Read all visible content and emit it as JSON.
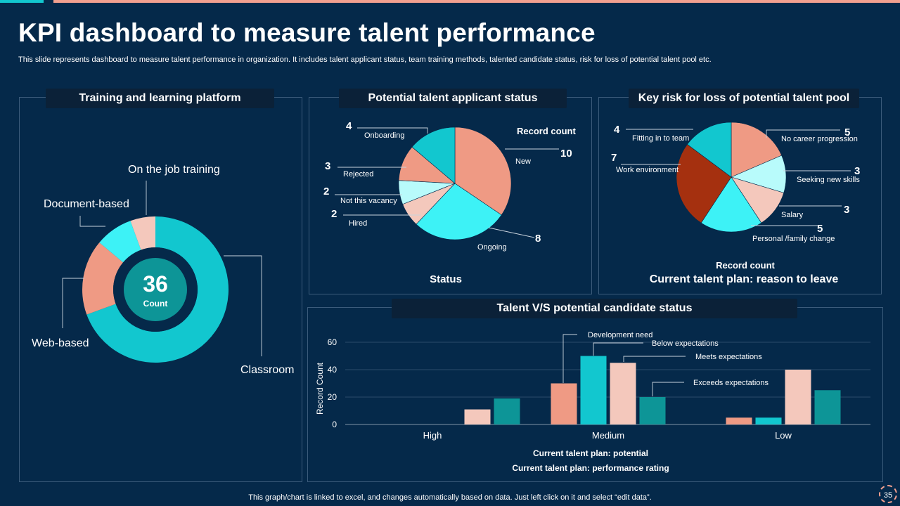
{
  "header": {
    "title": "KPI dashboard to measure talent performance",
    "subtitle": "This slide represents dashboard to measure talent performance in organization. It includes talent applicant status, team training methods, talented candidate status, risk for loss of potential talent pool etc."
  },
  "panels": {
    "training": "Training and learning platform",
    "applicant": "Potential talent applicant status",
    "risk": "Key risk for loss of potential talent pool",
    "bar": "Talent V/S potential candidate status"
  },
  "footer": "This graph/chart is linked to excel,  and changes automatically based on data. Just left click on it and select “edit data”.",
  "page_number": "35",
  "colors": {
    "teal": "#12c7cf",
    "salmon": "#ef9a84",
    "light_cyan": "#3df2f6",
    "pale_cyan": "#b8fbfb",
    "blush": "#f4c8bc",
    "rust": "#a5300f",
    "dark_teal": "#0d9597",
    "background": "#05294a"
  },
  "chart_data": [
    {
      "type": "pie",
      "variant": "donut",
      "title": "Training and learning platform",
      "center_value": "36",
      "center_label": "Count",
      "slices": [
        {
          "label": "Classroom",
          "value": 25
        },
        {
          "label": "Web-based",
          "value": 6
        },
        {
          "label": "Document-based",
          "value": 3
        },
        {
          "label": "On the job training",
          "value": 2
        }
      ]
    },
    {
      "type": "pie",
      "title": "Potential talent applicant status",
      "series_label": "Record count",
      "xlabel": "Status",
      "slices": [
        {
          "label": "New",
          "value": 10
        },
        {
          "label": "Ongoing",
          "value": 8
        },
        {
          "label": "Hired",
          "value": 2
        },
        {
          "label": "Not this vacancy",
          "value": 2
        },
        {
          "label": "Rejected",
          "value": 3
        },
        {
          "label": "Onboarding",
          "value": 4
        }
      ]
    },
    {
      "type": "pie",
      "title": "Key risk for loss of potential talent pool",
      "series_label": "Record count",
      "xlabel": "Current talent plan: reason to leave",
      "slices": [
        {
          "label": "No career progression",
          "value": 5
        },
        {
          "label": "Seeking new skills",
          "value": 3
        },
        {
          "label": "Salary",
          "value": 3
        },
        {
          "label": "Personal /family change",
          "value": 5
        },
        {
          "label": "Work environment",
          "value": 7
        },
        {
          "label": "Fitting in to team",
          "value": 4
        }
      ]
    },
    {
      "type": "bar",
      "title": "Talent V/S potential candidate status",
      "ylabel": "Record  Count",
      "xlabel": "Current talent plan: potential",
      "xlabel2": "Current talent plan: performance rating",
      "ylim": [
        0,
        60
      ],
      "yticks": [
        0,
        20,
        40,
        60
      ],
      "categories": [
        "High",
        "Medium",
        "Low"
      ],
      "series": [
        {
          "name": "Development need",
          "values": [
            0,
            30,
            5
          ]
        },
        {
          "name": "Below expectations",
          "values": [
            0,
            50,
            5
          ]
        },
        {
          "name": "Meets expectations",
          "values": [
            11,
            45,
            40
          ]
        },
        {
          "name": "Exceeds expectations",
          "values": [
            19,
            20,
            25
          ]
        }
      ]
    }
  ]
}
